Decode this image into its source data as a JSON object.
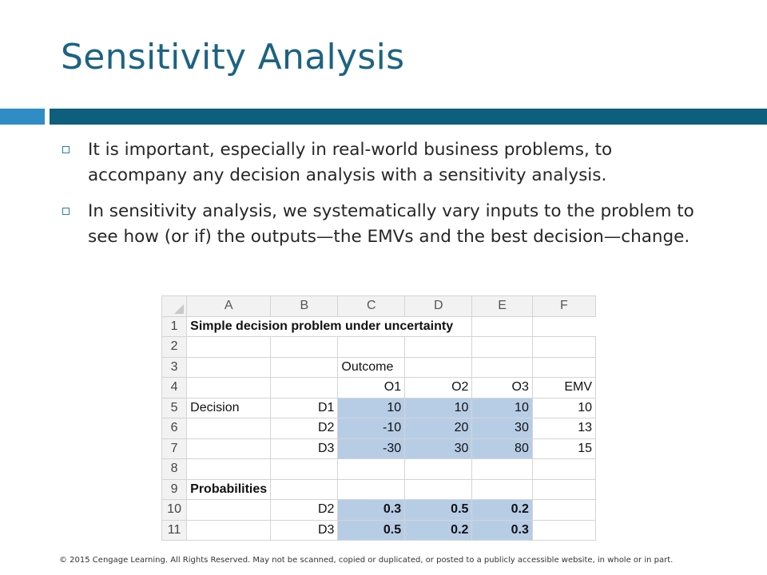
{
  "slide": {
    "title": "Sensitivity Analysis",
    "bullets": [
      "It is important, especially in real-world business problems, to accompany any decision analysis with a sensitivity analysis.",
      "In sensitivity analysis, we systematically vary inputs to the problem to see how (or if) the outputs—the EMVs and the best decision—change."
    ],
    "footer": "© 2015 Cengage Learning. All Rights Reserved. May not be scanned, copied or duplicated, or posted to a publicly accessible website, in whole or in part."
  },
  "sheet": {
    "columns": [
      "A",
      "B",
      "C",
      "D",
      "E",
      "F"
    ],
    "row_numbers": [
      "1",
      "2",
      "3",
      "4",
      "5",
      "6",
      "7",
      "8",
      "9",
      "10",
      "11"
    ],
    "title": "Simple decision problem under uncertainty",
    "outcome_label": "Outcome",
    "outcome_headers": [
      "O1",
      "O2",
      "O3"
    ],
    "emv_header": "EMV",
    "decision_label": "Decision",
    "decisions": [
      {
        "name": "D1",
        "payoffs": [
          "10",
          "10",
          "10"
        ],
        "emv": "10"
      },
      {
        "name": "D2",
        "payoffs": [
          "-10",
          "20",
          "30"
        ],
        "emv": "13"
      },
      {
        "name": "D3",
        "payoffs": [
          "-30",
          "30",
          "80"
        ],
        "emv": "15"
      }
    ],
    "probabilities_label": "Probabilities",
    "probabilities": [
      {
        "name": "D2",
        "values": [
          "0.3",
          "0.5",
          "0.2"
        ]
      },
      {
        "name": "D3",
        "values": [
          "0.5",
          "0.2",
          "0.3"
        ]
      }
    ],
    "highlight_color": "#b7cde6"
  }
}
